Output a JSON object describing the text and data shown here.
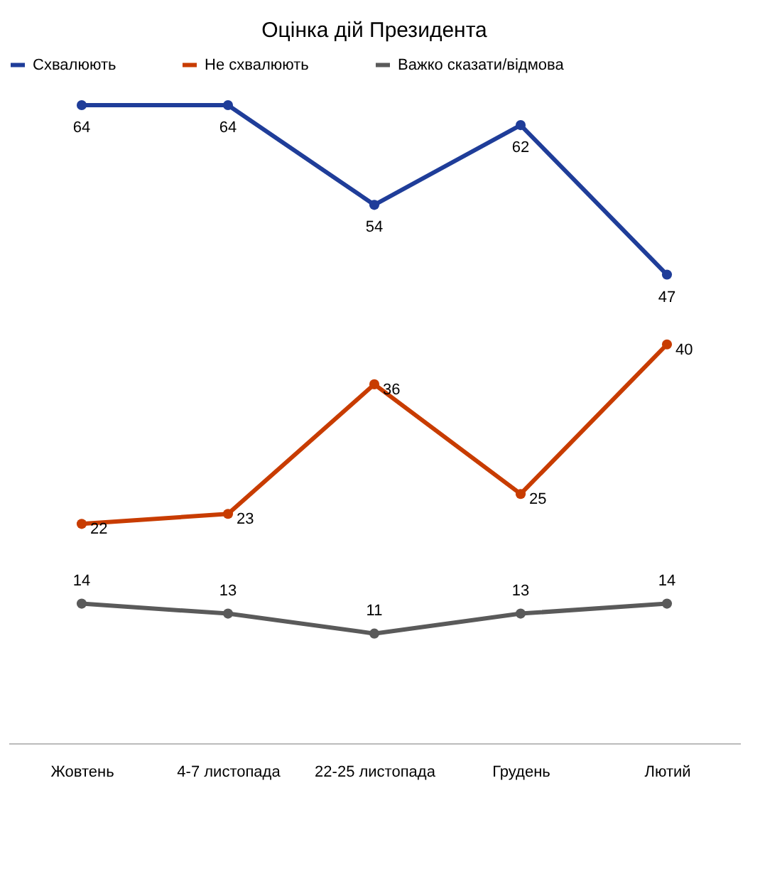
{
  "chart_data": {
    "type": "line",
    "title": "Оцінка дій Президента",
    "categories": [
      "Жовтень",
      "4-7 листопада",
      "22-25 листопада",
      "Грудень",
      "Лютий"
    ],
    "series": [
      {
        "name": "Схвалюють",
        "color": "#1f3d99",
        "values": [
          64,
          64,
          54,
          62,
          47
        ]
      },
      {
        "name": "Не схвалюють",
        "color": "#c83c00",
        "values": [
          22,
          23,
          36,
          25,
          40
        ]
      },
      {
        "name": "Важко сказати/відмова",
        "color": "#5a5a5a",
        "values": [
          14,
          13,
          11,
          13,
          14
        ]
      }
    ],
    "tick_labels": "x",
    "data_labels": true,
    "legend": "top",
    "marker": "circle",
    "line_style": "solid"
  }
}
